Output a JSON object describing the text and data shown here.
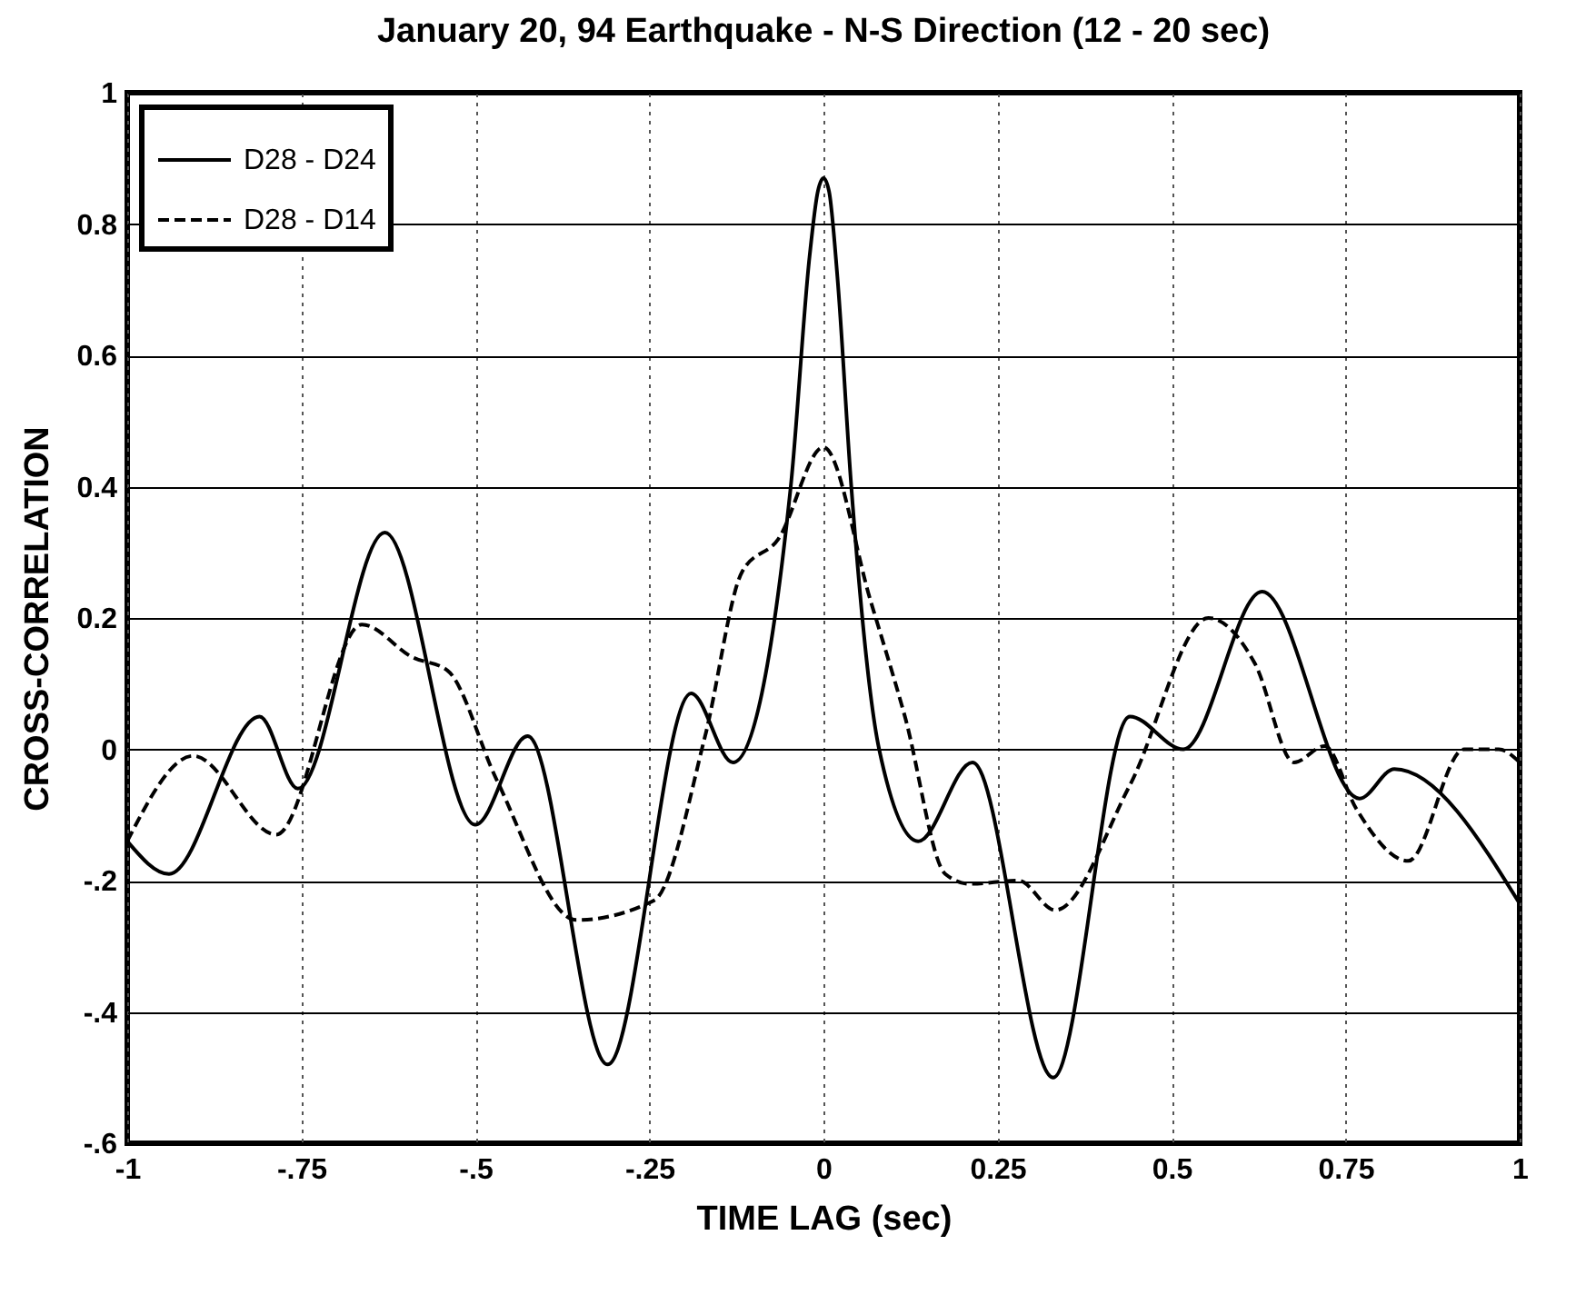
{
  "chart_data": {
    "type": "line",
    "title": "January 20, 94 Earthquake - N-S Direction (12 - 20 sec)",
    "xlabel": "TIME LAG (sec)",
    "ylabel": "CROSS-CORRELATION",
    "xlim": [
      -1,
      1
    ],
    "xticks": [
      -1,
      {
        "value": -0.75,
        "label": "-.75"
      },
      {
        "value": -0.5,
        "label": "-.5"
      },
      {
        "value": -0.25,
        "label": "-.25"
      },
      0,
      0.25,
      0.5,
      0.75,
      1
    ],
    "ylim": [
      -0.6,
      1
    ],
    "yticks": [
      {
        "value": -0.6,
        "label": "-.6"
      },
      {
        "value": -0.4,
        "label": "-.4"
      },
      {
        "value": -0.2,
        "label": "-.2"
      },
      0,
      0.2,
      0.4,
      0.6,
      0.8,
      1
    ],
    "grid": true,
    "legend": "top left",
    "series": [
      {
        "name": "D28 - D24",
        "color": "#000000",
        "line_style": "solid",
        "x": [
          -1,
          -0.94,
          -0.81,
          -0.755,
          -0.63,
          -0.5,
          -0.425,
          -0.31,
          -0.19,
          -0.13,
          -0.047,
          -0.02,
          -0.008,
          0,
          0.008,
          0.02,
          0.04,
          0.08,
          0.136,
          0.214,
          0.33,
          0.44,
          0.517,
          0.63,
          0.77,
          0.82,
          1
        ],
        "values": [
          -0.14,
          -0.19,
          0.05,
          -0.06,
          0.33,
          -0.115,
          0.02,
          -0.48,
          0.085,
          -0.02,
          0.4,
          0.75,
          0.85,
          0.87,
          0.85,
          0.72,
          0.4,
          0.0,
          -0.14,
          -0.02,
          -0.5,
          0.05,
          0,
          0.24,
          -0.075,
          -0.03,
          -0.235
        ]
      },
      {
        "name": "D28 - D14",
        "color": "#000000",
        "line_style": "dashed",
        "x": [
          -1,
          -0.905,
          -0.786,
          -0.663,
          -0.59,
          -0.54,
          -0.47,
          -0.355,
          -0.243,
          -0.17,
          -0.117,
          -0.065,
          0,
          0.068,
          0.117,
          0.175,
          0.21,
          0.28,
          0.333,
          0.44,
          0.553,
          0.62,
          0.676,
          0.72,
          0.765,
          0.84,
          0.92,
          0.97,
          1
        ],
        "values": [
          -0.14,
          -0.01,
          -0.13,
          0.19,
          0.14,
          0.12,
          -0.045,
          -0.26,
          -0.23,
          0.02,
          0.27,
          0.32,
          0.46,
          0.225,
          0.05,
          -0.19,
          -0.205,
          -0.2,
          -0.245,
          -0.055,
          0.2,
          0.13,
          -0.02,
          0.005,
          -0.09,
          -0.17,
          0,
          0,
          -0.02
        ]
      }
    ]
  }
}
